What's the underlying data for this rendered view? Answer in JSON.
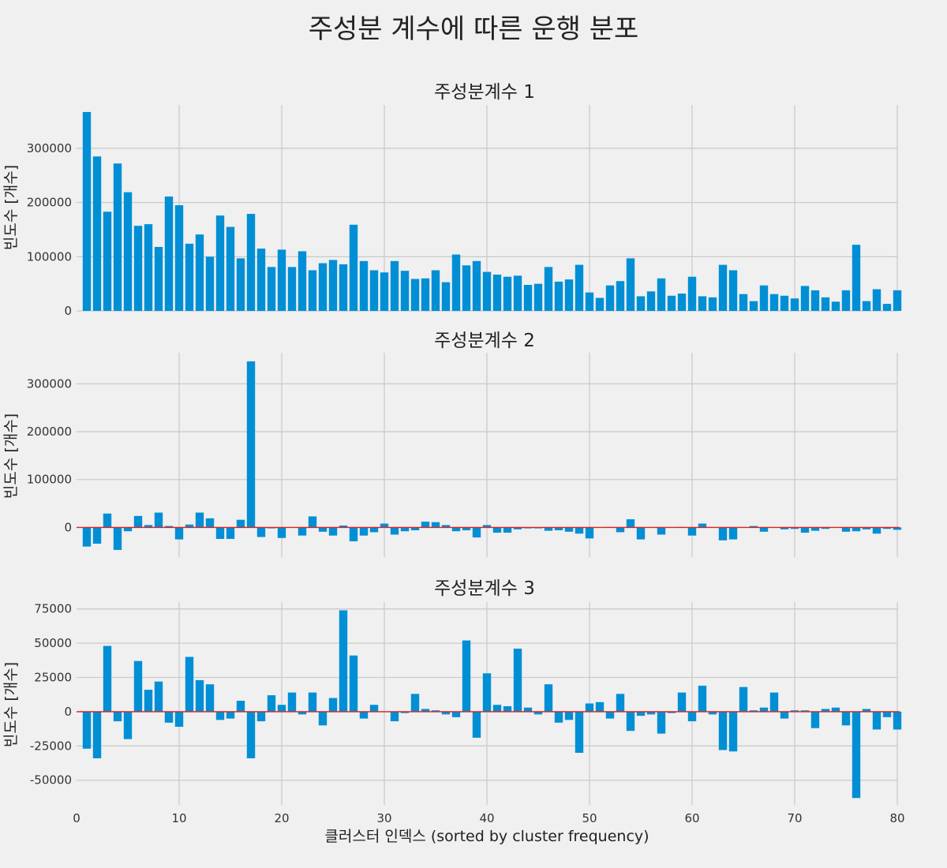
{
  "title": "주성분 계수에 따른 운행 분포",
  "xlabel": "클러스터 인덱스 (sorted by cluster frequency)",
  "colors": {
    "bar": "#008fd5",
    "zero_line": "#e0201e",
    "grid": "#cbcbcb",
    "background": "#f0f0f0"
  },
  "chart_data": [
    {
      "type": "bar",
      "title": "주성분계수 1",
      "xlabel": "",
      "ylabel": "빈도수 [개수]",
      "xlim": [
        0,
        80
      ],
      "ylim": [
        0,
        380000
      ],
      "yticks": [
        0,
        100000,
        200000,
        300000
      ],
      "xticks": [
        10,
        20,
        30,
        40,
        50,
        60,
        70,
        80
      ],
      "grid": true,
      "x": [
        1,
        2,
        3,
        4,
        5,
        6,
        7,
        8,
        9,
        10,
        11,
        12,
        13,
        14,
        15,
        16,
        17,
        18,
        19,
        20,
        21,
        22,
        23,
        24,
        25,
        26,
        27,
        28,
        29,
        30,
        31,
        32,
        33,
        34,
        35,
        36,
        37,
        38,
        39,
        40,
        41,
        42,
        43,
        44,
        45,
        46,
        47,
        48,
        49,
        50,
        51,
        52,
        53,
        54,
        55,
        56,
        57,
        58,
        59,
        60,
        61,
        62,
        63,
        64,
        65,
        66,
        67,
        68,
        69,
        70,
        71,
        72,
        73,
        74,
        75,
        76,
        77,
        78,
        79,
        80
      ],
      "values": [
        367000,
        285000,
        183000,
        272000,
        219000,
        157000,
        160000,
        118000,
        211000,
        195000,
        124000,
        141000,
        100000,
        176000,
        155000,
        97000,
        179000,
        115000,
        81000,
        113000,
        81000,
        110000,
        75000,
        88000,
        94000,
        86000,
        159000,
        92000,
        75000,
        71000,
        92000,
        74000,
        59000,
        60000,
        75000,
        53000,
        104000,
        84000,
        92000,
        72000,
        67000,
        63000,
        65000,
        48000,
        50000,
        81000,
        54000,
        58000,
        85000,
        34000,
        24000,
        47000,
        55000,
        97000,
        27000,
        36000,
        60000,
        28000,
        32000,
        63000,
        27000,
        25000,
        85000,
        75000,
        31000,
        18000,
        47000,
        31000,
        28000,
        23000,
        46000,
        38000,
        25000,
        17000,
        38000,
        122000,
        18000,
        40000,
        13000,
        38000
      ]
    },
    {
      "type": "bar",
      "title": "주성분계수 2",
      "xlabel": "",
      "ylabel": "빈도수 [개수]",
      "xlim": [
        0,
        80
      ],
      "ylim": [
        -62000,
        365000
      ],
      "yticks": [
        0,
        100000,
        200000,
        300000
      ],
      "xticks": [
        10,
        20,
        30,
        40,
        50,
        60,
        70,
        80
      ],
      "grid": true,
      "x": [
        1,
        2,
        3,
        4,
        5,
        6,
        7,
        8,
        9,
        10,
        11,
        12,
        13,
        14,
        15,
        16,
        17,
        18,
        19,
        20,
        21,
        22,
        23,
        24,
        25,
        26,
        27,
        28,
        29,
        30,
        31,
        32,
        33,
        34,
        35,
        36,
        37,
        38,
        39,
        40,
        41,
        42,
        43,
        44,
        45,
        46,
        47,
        48,
        49,
        50,
        51,
        52,
        53,
        54,
        55,
        56,
        57,
        58,
        59,
        60,
        61,
        62,
        63,
        64,
        65,
        66,
        67,
        68,
        69,
        70,
        71,
        72,
        73,
        74,
        75,
        76,
        77,
        78,
        79,
        80
      ],
      "values": [
        -40000,
        -34000,
        29000,
        -47000,
        -8000,
        24000,
        5000,
        31000,
        3000,
        -25000,
        6000,
        31000,
        19000,
        -24000,
        -24000,
        16000,
        347000,
        -20000,
        -2000,
        -22000,
        -1000,
        -17000,
        23000,
        -9000,
        -17000,
        4000,
        -29000,
        -17000,
        -10000,
        8000,
        -15000,
        -8000,
        -6000,
        12000,
        11000,
        5000,
        -8000,
        -6000,
        -21000,
        5000,
        -11000,
        -11000,
        -4000,
        -2000,
        -2000,
        -7000,
        -6000,
        -9000,
        -13000,
        -23000,
        -1000,
        1000,
        -10000,
        17000,
        -25000,
        -1000,
        -15000,
        -1000,
        1000,
        -17000,
        8000,
        -1000,
        -27000,
        -25000,
        0,
        3000,
        -9000,
        -1000,
        -4000,
        -3000,
        -11000,
        -7000,
        -3000,
        -1000,
        -9000,
        -8000,
        -4000,
        -13000,
        -3000,
        -5000
      ]
    },
    {
      "type": "bar",
      "title": "주성분계수 3",
      "xlabel": "클러스터 인덱스 (sorted by cluster frequency)",
      "ylabel": "빈도수 [개수]",
      "xlim": [
        0,
        80
      ],
      "ylim": [
        -68000,
        80000
      ],
      "yticks": [
        -50000,
        -25000,
        0,
        25000,
        50000,
        75000
      ],
      "xticks": [
        0,
        10,
        20,
        30,
        40,
        50,
        60,
        70,
        80
      ],
      "grid": true,
      "x": [
        1,
        2,
        3,
        4,
        5,
        6,
        7,
        8,
        9,
        10,
        11,
        12,
        13,
        14,
        15,
        16,
        17,
        18,
        19,
        20,
        21,
        22,
        23,
        24,
        25,
        26,
        27,
        28,
        29,
        30,
        31,
        32,
        33,
        34,
        35,
        36,
        37,
        38,
        39,
        40,
        41,
        42,
        43,
        44,
        45,
        46,
        47,
        48,
        49,
        50,
        51,
        52,
        53,
        54,
        55,
        56,
        57,
        58,
        59,
        60,
        61,
        62,
        63,
        64,
        65,
        66,
        67,
        68,
        69,
        70,
        71,
        72,
        73,
        74,
        75,
        76,
        77,
        78,
        79,
        80
      ],
      "values": [
        -27000,
        -34000,
        48000,
        -7000,
        -20000,
        37000,
        16000,
        22000,
        -8000,
        -11000,
        40000,
        23000,
        20000,
        -6000,
        -5000,
        8000,
        -34000,
        -7000,
        12000,
        5000,
        14000,
        -2000,
        14000,
        -10000,
        10000,
        74000,
        41000,
        -5000,
        5000,
        0,
        -7000,
        -1000,
        13000,
        2000,
        1000,
        -2000,
        -4000,
        52000,
        -19000,
        28000,
        5000,
        4000,
        46000,
        3000,
        -2000,
        20000,
        -8000,
        -6000,
        -30000,
        6000,
        7000,
        -5000,
        13000,
        -14000,
        -3000,
        -2000,
        -16000,
        -1000,
        14000,
        -7000,
        19000,
        -2000,
        -28000,
        -29000,
        18000,
        1000,
        3000,
        14000,
        -5000,
        1000,
        1000,
        -12000,
        2000,
        3000,
        -10000,
        -63000,
        2000,
        -13000,
        -4000,
        -13000
      ]
    }
  ]
}
